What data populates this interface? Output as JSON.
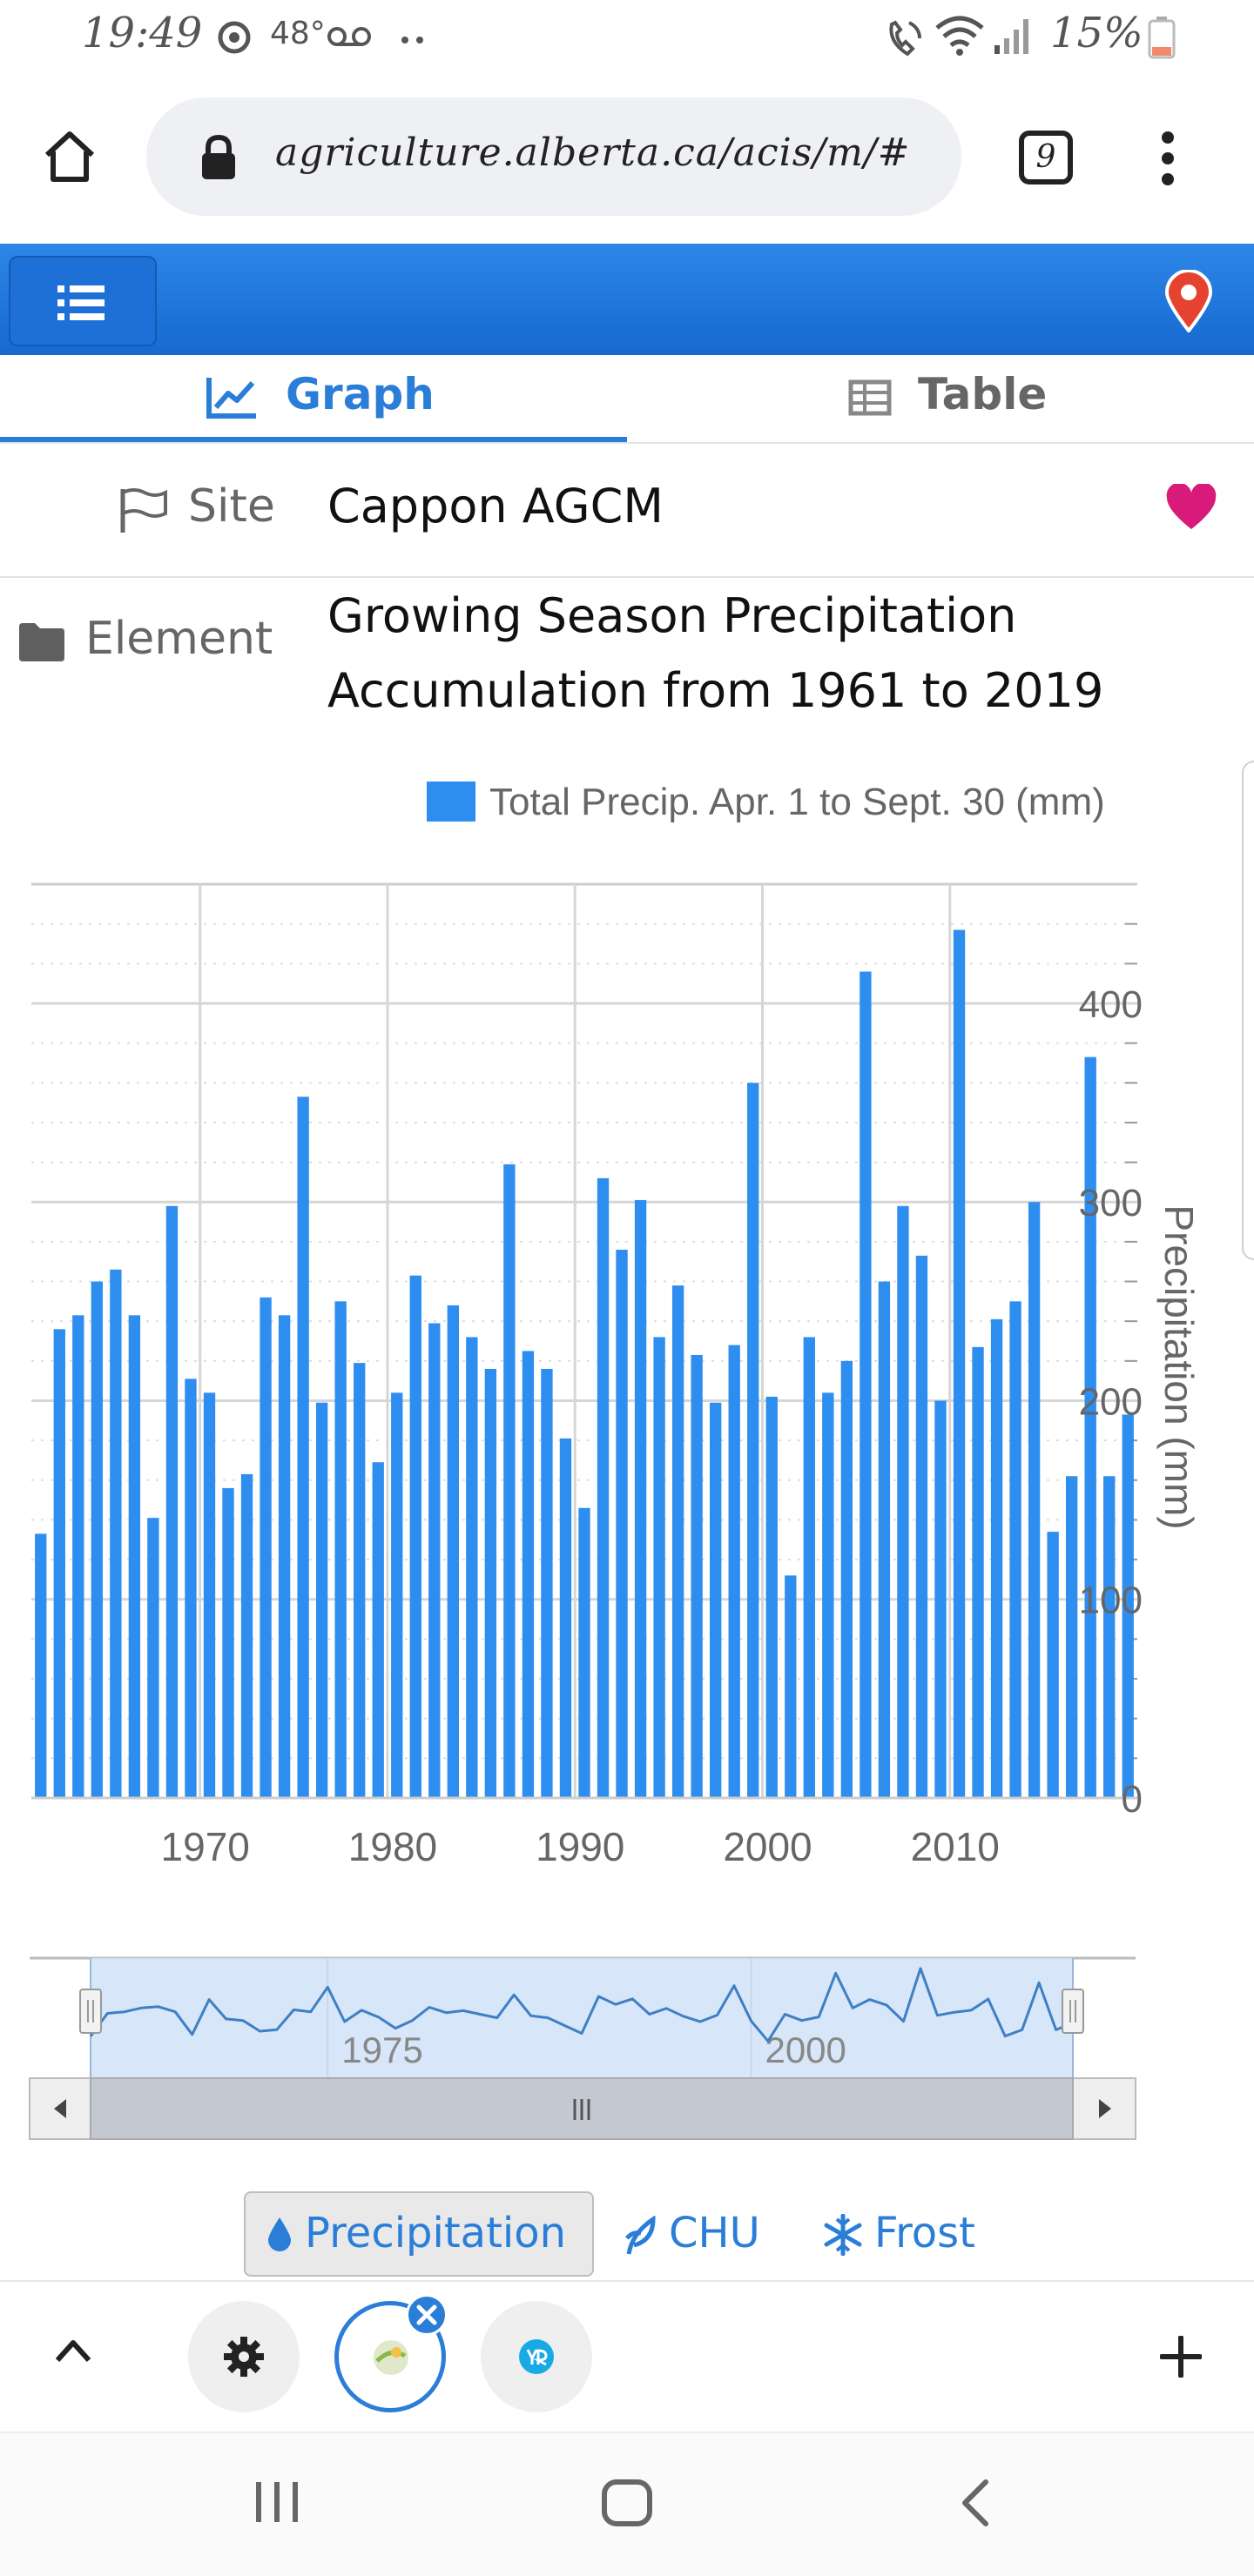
{
  "status_bar": {
    "time": "19:49",
    "temperature": "48°",
    "battery": "15%"
  },
  "browser": {
    "url": "agriculture.alberta.ca/acis/m/#",
    "tab_count": "9"
  },
  "tabs": [
    {
      "label": "Graph",
      "active": true
    },
    {
      "label": "Table",
      "active": false
    }
  ],
  "site": {
    "label": "Site",
    "value": "Cappon AGCM"
  },
  "element": {
    "label": "Element",
    "line1": "Growing Season Precipitation",
    "line2": "Accumulation from 1961 to 2019"
  },
  "chart_data": {
    "type": "bar",
    "legend": "Total Precip. Apr. 1 to Sept. 30 (mm)",
    "ylabel": "Precipitation (mm)",
    "ylim": [
      0,
      460
    ],
    "y_ticks": [
      "0",
      "100",
      "200",
      "300",
      "400"
    ],
    "x_ticks": [
      "1970",
      "1980",
      "1990",
      "2000",
      "2010"
    ],
    "bar_color": "#2e8ef0",
    "x": [
      1961,
      1962,
      1963,
      1964,
      1965,
      1966,
      1967,
      1968,
      1969,
      1970,
      1971,
      1972,
      1973,
      1974,
      1975,
      1976,
      1977,
      1978,
      1979,
      1980,
      1981,
      1982,
      1983,
      1984,
      1985,
      1986,
      1987,
      1988,
      1989,
      1990,
      1991,
      1992,
      1993,
      1994,
      1995,
      1996,
      1997,
      1998,
      1999,
      2000,
      2001,
      2002,
      2003,
      2004,
      2005,
      2006,
      2007,
      2008,
      2009,
      2010,
      2011,
      2012,
      2013,
      2014,
      2015,
      2016,
      2017,
      2018,
      2019
    ],
    "values": [
      133,
      236,
      243,
      260,
      266,
      243,
      141,
      298,
      211,
      204,
      156,
      163,
      252,
      243,
      353,
      199,
      250,
      219,
      169,
      204,
      263,
      239,
      248,
      232,
      216,
      319,
      225,
      216,
      181,
      146,
      312,
      276,
      301,
      232,
      258,
      223,
      199,
      228,
      360,
      202,
      112,
      232,
      204,
      220,
      416,
      260,
      298,
      273,
      200,
      437,
      227,
      241,
      250,
      300,
      134,
      162,
      373,
      162,
      193
    ],
    "navigator": {
      "x_ticks": [
        "1975",
        "2000"
      ],
      "range": [
        1961,
        2019
      ]
    }
  },
  "element_buttons": [
    {
      "label": "Precipitation",
      "icon": "drop-icon",
      "active": true
    },
    {
      "label": "CHU",
      "icon": "leaf-icon",
      "active": false
    },
    {
      "label": "Frost",
      "icon": "snowflake-icon",
      "active": false
    }
  ],
  "colors": {
    "accent": "#2a7ed8",
    "header": "#1f74dd",
    "favorite": "#d81b7a"
  }
}
